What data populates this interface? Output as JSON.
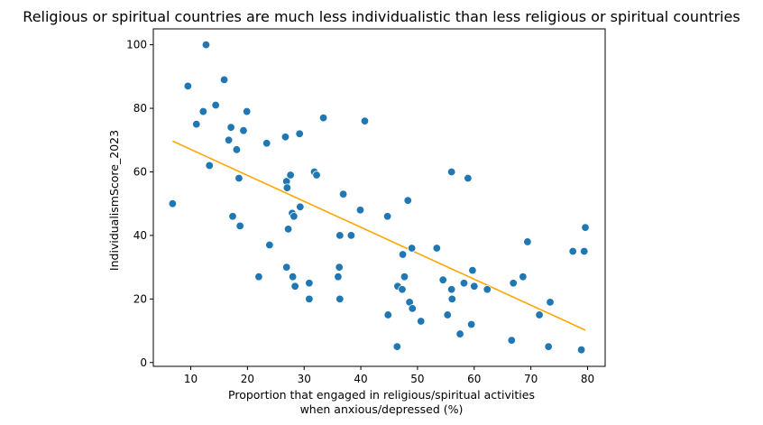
{
  "chart_data": {
    "type": "scatter",
    "title": "Religious or spiritual countries are much less individualistic than less religious or spiritual countries",
    "xlabel_lines": [
      "Proportion that engaged in religious/spiritual activities",
      "when anxious/depressed (%)"
    ],
    "ylabel": "IndividualismScore_2023",
    "xlim": [
      3.4,
      83.1
    ],
    "ylim": [
      -1.2,
      105
    ],
    "xticks": [
      10,
      20,
      30,
      40,
      50,
      60,
      70,
      80
    ],
    "yticks": [
      0,
      20,
      40,
      60,
      80,
      100
    ],
    "grid": false,
    "colors": {
      "points": "#1f77b4",
      "trend": "#ffa500"
    },
    "points": [
      {
        "x": 6.8,
        "y": 50
      },
      {
        "x": 9.5,
        "y": 87
      },
      {
        "x": 11.0,
        "y": 75
      },
      {
        "x": 12.2,
        "y": 79
      },
      {
        "x": 12.7,
        "y": 100
      },
      {
        "x": 13.3,
        "y": 62
      },
      {
        "x": 14.4,
        "y": 81
      },
      {
        "x": 15.9,
        "y": 89
      },
      {
        "x": 16.7,
        "y": 70
      },
      {
        "x": 17.1,
        "y": 74
      },
      {
        "x": 17.4,
        "y": 46
      },
      {
        "x": 18.1,
        "y": 67
      },
      {
        "x": 18.5,
        "y": 58
      },
      {
        "x": 18.7,
        "y": 43
      },
      {
        "x": 19.3,
        "y": 73
      },
      {
        "x": 19.9,
        "y": 79
      },
      {
        "x": 22.0,
        "y": 27
      },
      {
        "x": 23.4,
        "y": 69
      },
      {
        "x": 23.9,
        "y": 37
      },
      {
        "x": 26.7,
        "y": 71
      },
      {
        "x": 26.9,
        "y": 30
      },
      {
        "x": 26.9,
        "y": 57
      },
      {
        "x": 27.0,
        "y": 55
      },
      {
        "x": 27.2,
        "y": 42
      },
      {
        "x": 27.6,
        "y": 59
      },
      {
        "x": 27.9,
        "y": 47
      },
      {
        "x": 28.0,
        "y": 27
      },
      {
        "x": 28.2,
        "y": 46
      },
      {
        "x": 28.4,
        "y": 24
      },
      {
        "x": 29.2,
        "y": 72
      },
      {
        "x": 29.3,
        "y": 49
      },
      {
        "x": 30.9,
        "y": 25
      },
      {
        "x": 30.9,
        "y": 20
      },
      {
        "x": 31.8,
        "y": 60
      },
      {
        "x": 32.2,
        "y": 59
      },
      {
        "x": 33.4,
        "y": 77
      },
      {
        "x": 36.0,
        "y": 27
      },
      {
        "x": 36.2,
        "y": 30
      },
      {
        "x": 36.3,
        "y": 40
      },
      {
        "x": 36.3,
        "y": 20
      },
      {
        "x": 36.9,
        "y": 53
      },
      {
        "x": 38.3,
        "y": 40
      },
      {
        "x": 39.9,
        "y": 48
      },
      {
        "x": 40.7,
        "y": 76
      },
      {
        "x": 44.7,
        "y": 46
      },
      {
        "x": 44.8,
        "y": 15
      },
      {
        "x": 46.4,
        "y": 5
      },
      {
        "x": 46.5,
        "y": 24
      },
      {
        "x": 47.3,
        "y": 23
      },
      {
        "x": 47.4,
        "y": 34
      },
      {
        "x": 47.7,
        "y": 27
      },
      {
        "x": 48.3,
        "y": 51
      },
      {
        "x": 48.6,
        "y": 19
      },
      {
        "x": 49.0,
        "y": 36
      },
      {
        "x": 49.1,
        "y": 17
      },
      {
        "x": 50.6,
        "y": 13
      },
      {
        "x": 53.4,
        "y": 36
      },
      {
        "x": 54.5,
        "y": 26
      },
      {
        "x": 55.3,
        "y": 15
      },
      {
        "x": 56.0,
        "y": 60
      },
      {
        "x": 56.0,
        "y": 23
      },
      {
        "x": 56.1,
        "y": 20
      },
      {
        "x": 57.5,
        "y": 9
      },
      {
        "x": 58.2,
        "y": 25
      },
      {
        "x": 58.9,
        "y": 58
      },
      {
        "x": 59.5,
        "y": 12
      },
      {
        "x": 59.7,
        "y": 29
      },
      {
        "x": 60.0,
        "y": 24
      },
      {
        "x": 62.3,
        "y": 23
      },
      {
        "x": 66.6,
        "y": 7
      },
      {
        "x": 66.9,
        "y": 25
      },
      {
        "x": 68.6,
        "y": 27
      },
      {
        "x": 69.4,
        "y": 38
      },
      {
        "x": 71.5,
        "y": 15
      },
      {
        "x": 73.1,
        "y": 5
      },
      {
        "x": 73.4,
        "y": 19
      },
      {
        "x": 77.4,
        "y": 35
      },
      {
        "x": 78.9,
        "y": 4
      },
      {
        "x": 79.4,
        "y": 35
      },
      {
        "x": 79.6,
        "y": 42.5
      }
    ],
    "trendline": {
      "x": [
        6.8,
        79.6
      ],
      "y": [
        69.7,
        10.2
      ]
    }
  }
}
